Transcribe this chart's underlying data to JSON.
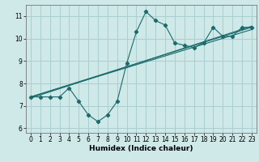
{
  "xlabel": "Humidex (Indice chaleur)",
  "background_color": "#cfe8e8",
  "grid_color": "#aacfcf",
  "line_color": "#1a6b6b",
  "xlim": [
    -0.5,
    23.5
  ],
  "ylim": [
    5.8,
    11.5
  ],
  "xticks": [
    0,
    1,
    2,
    3,
    4,
    5,
    6,
    7,
    8,
    9,
    10,
    11,
    12,
    13,
    14,
    15,
    16,
    17,
    18,
    19,
    20,
    21,
    22,
    23
  ],
  "yticks": [
    6,
    7,
    8,
    9,
    10,
    11
  ],
  "series": [
    [
      0,
      7.4
    ],
    [
      1,
      7.4
    ],
    [
      2,
      7.4
    ],
    [
      3,
      7.4
    ],
    [
      4,
      7.8
    ],
    [
      5,
      7.2
    ],
    [
      6,
      6.6
    ],
    [
      7,
      6.3
    ],
    [
      8,
      6.6
    ],
    [
      9,
      7.2
    ],
    [
      10,
      8.9
    ],
    [
      11,
      10.3
    ],
    [
      12,
      11.2
    ],
    [
      13,
      10.8
    ],
    [
      14,
      10.6
    ],
    [
      15,
      9.8
    ],
    [
      16,
      9.7
    ],
    [
      17,
      9.6
    ],
    [
      18,
      9.8
    ],
    [
      19,
      10.5
    ],
    [
      20,
      10.1
    ],
    [
      21,
      10.1
    ],
    [
      22,
      10.5
    ],
    [
      23,
      10.5
    ]
  ],
  "straight_lines": [
    [
      [
        0,
        7.4
      ],
      [
        23,
        10.5
      ]
    ],
    [
      [
        0,
        7.4
      ],
      [
        23,
        10.4
      ]
    ],
    [
      [
        0,
        7.35
      ],
      [
        23,
        10.55
      ]
    ]
  ]
}
